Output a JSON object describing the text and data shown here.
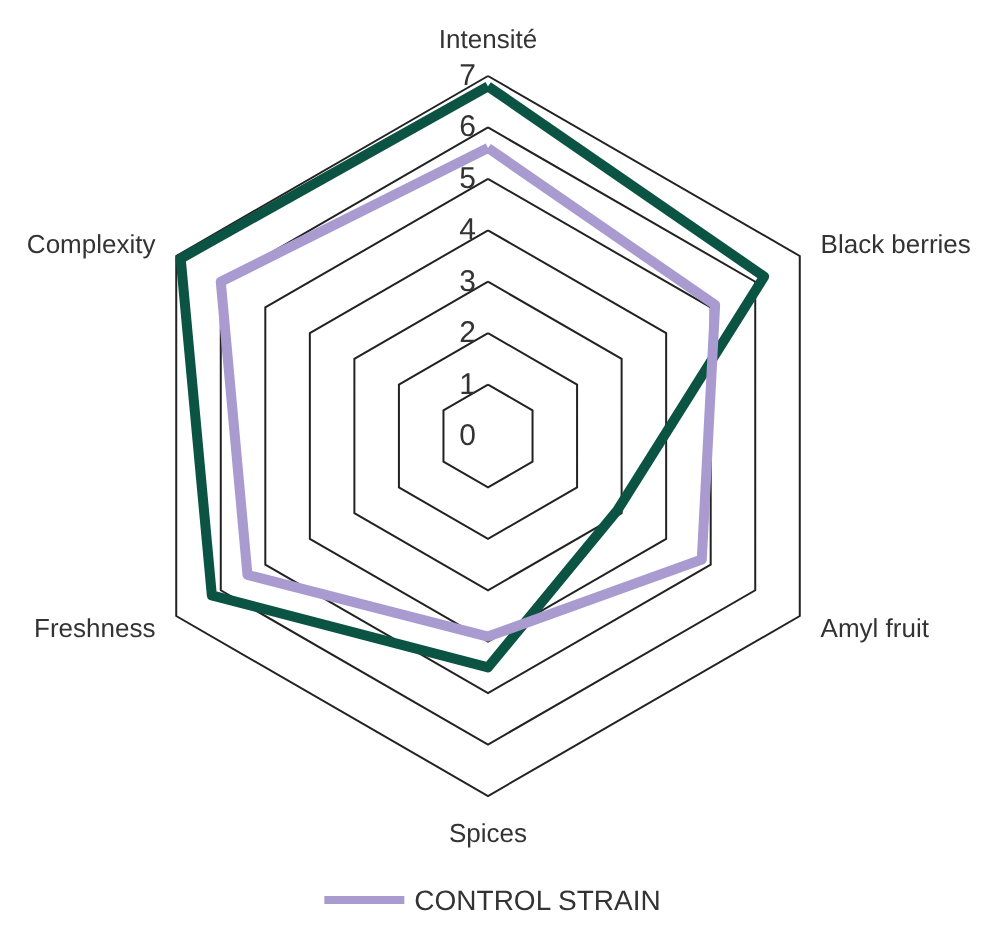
{
  "chart_data": {
    "type": "radar",
    "categories": [
      "Intensité",
      "Black berries",
      "Amyl fruit",
      "Spices",
      "Freshness",
      "Complexity"
    ],
    "series": [
      {
        "color": "#0b5444",
        "values": [
          6.8,
          6.2,
          2.9,
          4.5,
          6.2,
          6.9
        ]
      },
      {
        "name": "CONTROL STRAIN",
        "color": "#a99ad0",
        "values": [
          5.6,
          5.1,
          4.8,
          3.9,
          5.4,
          6.0
        ]
      }
    ],
    "ylim": [
      0,
      7
    ],
    "yticks": [
      0,
      1,
      2,
      3,
      4,
      5,
      6,
      7
    ],
    "legend": "bottom",
    "grid": true
  }
}
